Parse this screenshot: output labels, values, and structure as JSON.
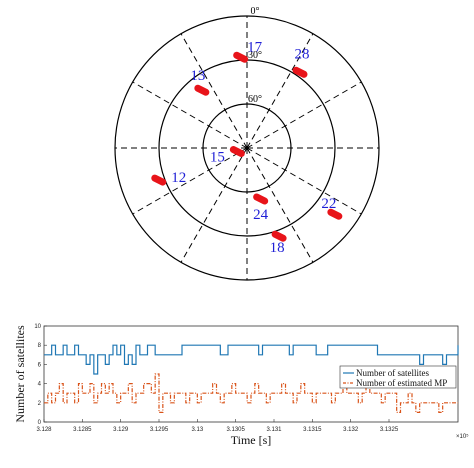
{
  "chart_data": [
    {
      "type": "polar-skyplot",
      "azimuth_top_label": "0°",
      "elevation_rings": [
        {
          "elevation": 0,
          "label": ""
        },
        {
          "elevation": 30,
          "label": "30°"
        },
        {
          "elevation": 60,
          "label": "60°"
        }
      ],
      "spoke_step_deg": 30,
      "track_color": "#e8141a",
      "label_color": "#1f1fd6",
      "satellites": [
        {
          "prn": "17",
          "azimuth": 356,
          "elevation": 28
        },
        {
          "prn": "28",
          "azimuth": 35,
          "elevation": 27
        },
        {
          "prn": "13",
          "azimuth": 322,
          "elevation": 40
        },
        {
          "prn": "15",
          "azimuth": 250,
          "elevation": 83
        },
        {
          "prn": "12",
          "azimuth": 250,
          "elevation": 26
        },
        {
          "prn": "24",
          "azimuth": 165,
          "elevation": 54
        },
        {
          "prn": "18",
          "azimuth": 160,
          "elevation": 26
        },
        {
          "prn": "22",
          "azimuth": 127,
          "elevation": 15
        }
      ]
    },
    {
      "type": "line",
      "xlabel": "Time [s]",
      "ylabel": "Number of satellites",
      "x_exponent_label": "×10⁵",
      "xlim": [
        3.128,
        3.1334
      ],
      "xticks": [
        "3.128",
        "3.1285",
        "3.129",
        "3.1295",
        "3.13",
        "3.1305",
        "3.131",
        "3.1315",
        "3.132",
        "3.1325"
      ],
      "ylim": [
        0,
        10
      ],
      "yticks": [
        "0",
        "2",
        "4",
        "6",
        "8",
        "10"
      ],
      "legend": "inside right",
      "series": [
        {
          "name": "Number of satellites",
          "color": "#1f77b4",
          "style": "solid",
          "x": [
            3.128,
            3.12805,
            3.1281,
            3.12815,
            3.1282,
            3.12825,
            3.1283,
            3.12835,
            3.1284,
            3.12845,
            3.1285,
            3.12855,
            3.1286,
            3.12865,
            3.1287,
            3.12875,
            3.1288,
            3.12885,
            3.1289,
            3.12895,
            3.129,
            3.12905,
            3.1291,
            3.12915,
            3.1292,
            3.12925,
            3.1293,
            3.12935,
            3.1294,
            3.12945,
            3.1295,
            3.12955,
            3.1296,
            3.12965,
            3.1297,
            3.12975,
            3.1298,
            3.12985,
            3.1299,
            3.12995,
            3.13,
            3.13005,
            3.1301,
            3.13015,
            3.1302,
            3.13025,
            3.1303,
            3.13035,
            3.1304,
            3.13045,
            3.1305,
            3.13055,
            3.1306,
            3.13065,
            3.1307,
            3.13075,
            3.1308,
            3.13085,
            3.1309,
            3.13095,
            3.131,
            3.13105,
            3.1311,
            3.13115,
            3.1312,
            3.13125,
            3.1313,
            3.13135,
            3.1314,
            3.13145,
            3.1315,
            3.13155,
            3.1316,
            3.13165,
            3.1317,
            3.13175,
            3.1318,
            3.13185,
            3.1319,
            3.13195,
            3.132,
            3.13205,
            3.1321,
            3.13215,
            3.1322,
            3.13225,
            3.1323,
            3.13235,
            3.1324,
            3.13245,
            3.1325,
            3.13255,
            3.1326,
            3.13265,
            3.1327,
            3.13275,
            3.1328,
            3.13285,
            3.1329,
            3.13295,
            3.133,
            3.13305,
            3.1331,
            3.13315,
            3.1332,
            3.13325,
            3.1333,
            3.13335,
            3.1334
          ],
          "values": [
            7,
            7,
            8,
            7,
            7,
            8,
            7,
            7,
            8,
            7,
            7,
            6,
            7,
            5,
            7,
            7,
            6,
            7,
            8,
            7,
            8,
            6,
            7,
            6,
            8,
            7,
            7,
            8,
            8,
            7,
            7,
            7,
            7,
            7,
            7,
            7,
            8,
            8,
            8,
            8,
            8,
            8,
            8,
            8,
            8,
            8,
            7,
            7,
            8,
            8,
            8,
            8,
            8,
            8,
            8,
            8,
            7,
            8,
            8,
            8,
            8,
            8,
            8,
            8,
            7,
            8,
            8,
            8,
            8,
            8,
            8,
            7,
            7,
            7,
            8,
            8,
            8,
            8,
            8,
            8,
            8,
            8,
            8,
            8,
            8,
            8,
            8,
            7,
            7,
            7,
            7,
            7,
            7,
            7,
            7,
            7,
            7,
            7,
            6,
            7,
            7,
            7,
            7,
            7,
            6,
            7,
            7,
            7,
            8
          ]
        },
        {
          "name": "Number of estimated MP",
          "color": "#d95319",
          "style": "dashdot",
          "x": [
            3.128,
            3.12805,
            3.1281,
            3.12815,
            3.1282,
            3.12825,
            3.1283,
            3.12835,
            3.1284,
            3.12845,
            3.1285,
            3.12855,
            3.1286,
            3.12865,
            3.1287,
            3.12875,
            3.1288,
            3.12885,
            3.1289,
            3.12895,
            3.129,
            3.12905,
            3.1291,
            3.12915,
            3.1292,
            3.12925,
            3.1293,
            3.12935,
            3.1294,
            3.12945,
            3.1295,
            3.12955,
            3.1296,
            3.12965,
            3.1297,
            3.12975,
            3.1298,
            3.12985,
            3.1299,
            3.12995,
            3.13,
            3.13005,
            3.1301,
            3.13015,
            3.1302,
            3.13025,
            3.1303,
            3.13035,
            3.1304,
            3.13045,
            3.1305,
            3.13055,
            3.1306,
            3.13065,
            3.1307,
            3.13075,
            3.1308,
            3.13085,
            3.1309,
            3.13095,
            3.131,
            3.13105,
            3.1311,
            3.13115,
            3.1312,
            3.13125,
            3.1313,
            3.13135,
            3.1314,
            3.13145,
            3.1315,
            3.13155,
            3.1316,
            3.13165,
            3.1317,
            3.13175,
            3.1318,
            3.13185,
            3.1319,
            3.13195,
            3.132,
            3.13205,
            3.1321,
            3.13215,
            3.1322,
            3.13225,
            3.1323,
            3.13235,
            3.1324,
            3.13245,
            3.1325,
            3.13255,
            3.1326,
            3.13265,
            3.1327,
            3.13275,
            3.1328,
            3.13285,
            3.1329,
            3.13295,
            3.133,
            3.13305,
            3.1331,
            3.13315,
            3.1332,
            3.13325,
            3.1333,
            3.13335,
            3.1334
          ],
          "values": [
            2,
            3,
            2,
            3,
            4,
            2,
            3,
            3,
            2,
            4,
            3,
            3,
            4,
            2,
            3,
            4,
            3,
            4,
            3,
            2,
            3,
            3,
            4,
            2,
            3,
            3,
            4,
            4,
            3,
            5,
            1,
            3,
            3,
            2,
            3,
            3,
            3,
            2,
            3,
            3,
            2,
            3,
            3,
            3,
            4,
            3,
            2,
            3,
            3,
            4,
            3,
            3,
            3,
            2,
            3,
            4,
            3,
            3,
            2,
            3,
            3,
            3,
            4,
            3,
            3,
            2,
            3,
            4,
            3,
            3,
            2,
            3,
            3,
            3,
            3,
            2,
            3,
            3,
            4,
            3,
            3,
            3,
            2,
            3,
            4,
            3,
            3,
            3,
            2,
            3,
            3,
            3,
            1,
            2,
            2,
            3,
            2,
            1,
            2,
            2,
            2,
            2,
            2,
            1,
            2,
            2,
            2,
            2,
            2
          ]
        }
      ]
    }
  ]
}
